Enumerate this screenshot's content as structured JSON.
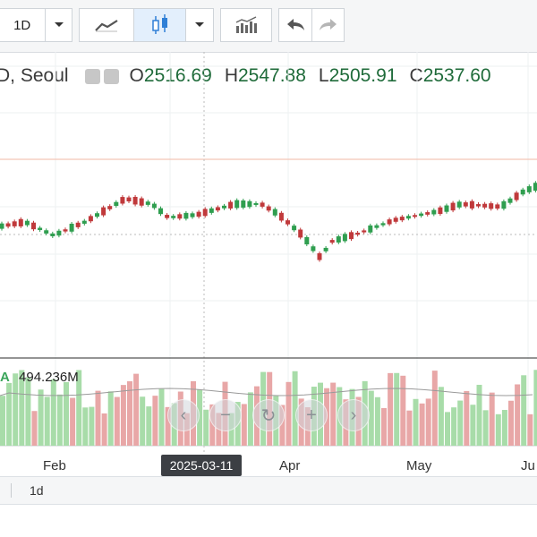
{
  "toolbar": {
    "interval_label": "1D",
    "icons": [
      "chevron-down-icon",
      "line-chart-icon",
      "candlestick-icon",
      "chevron-down-icon",
      "indicators-icon",
      "undo-icon",
      "redo-icon"
    ]
  },
  "legend": {
    "title": "D, Seoul",
    "open_key": "O",
    "open": "2516.69",
    "high_key": "H",
    "high": "2547.88",
    "low_key": "L",
    "low": "2505.91",
    "close_key": "C",
    "close": "2537.60"
  },
  "volume": {
    "marker": "A",
    "value": "494.236M"
  },
  "nav_controls": [
    "chevron-left-icon",
    "zoom-out-icon",
    "reset-icon",
    "zoom-in-icon",
    "chevron-right-icon"
  ],
  "x_axis": {
    "labels": [
      "Feb",
      "Apr",
      "May",
      "Ju"
    ],
    "crosshair_date": "2025-03-11"
  },
  "bottom_bar": {
    "range_label": "1d"
  },
  "colors": {
    "up": "#2f9e4f",
    "down": "#c0393b",
    "up_volume": "#a8dca9",
    "down_volume": "#e8a7a7"
  }
}
